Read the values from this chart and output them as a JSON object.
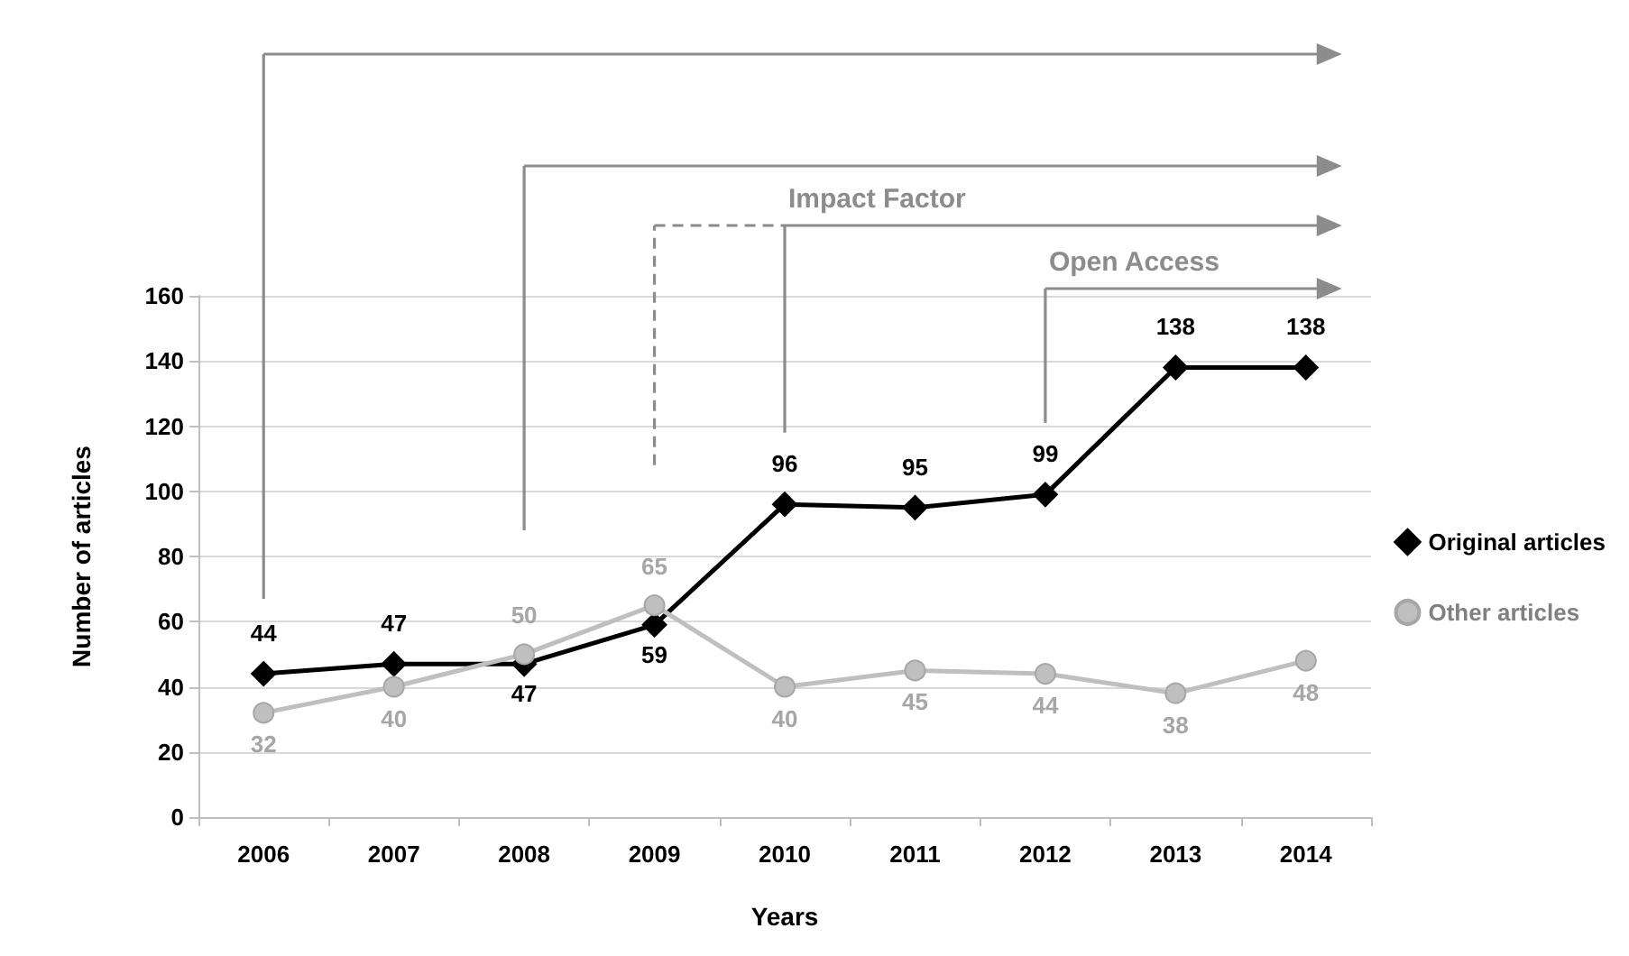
{
  "chart_data": {
    "type": "line",
    "xlabel": "Years",
    "ylabel": "Number of articles",
    "categories": [
      "2006",
      "2007",
      "2008",
      "2009",
      "2010",
      "2011",
      "2012",
      "2013",
      "2014"
    ],
    "series": [
      {
        "name": "Original articles",
        "color": "#000000",
        "marker": "diamond",
        "values": [
          44,
          47,
          47,
          59,
          96,
          95,
          99,
          138,
          138
        ]
      },
      {
        "name": "Other articles",
        "color": "#bfbfbf",
        "marker": "circle",
        "values": [
          32,
          40,
          50,
          65,
          40,
          45,
          44,
          38,
          48
        ]
      }
    ],
    "ylim": [
      0,
      160
    ],
    "yticks": [
      0,
      20,
      40,
      60,
      80,
      100,
      120,
      140,
      160
    ],
    "grid": "y",
    "legend": "right",
    "data_labels": true,
    "ref_lines": [
      {
        "axis": "x",
        "value": "2006",
        "color": "#8c8c8c"
      },
      {
        "axis": "x",
        "value": "2008",
        "color": "#8c8c8c"
      },
      {
        "axis": "x",
        "value": "2009",
        "color": "#8c8c8c",
        "line_style": "dashed"
      },
      {
        "axis": "x",
        "value": "2010",
        "label": "Impact Factor",
        "color": "#8c8c8c"
      },
      {
        "axis": "x",
        "value": "2012",
        "label": "Open Access",
        "color": "#8c8c8c"
      }
    ]
  }
}
